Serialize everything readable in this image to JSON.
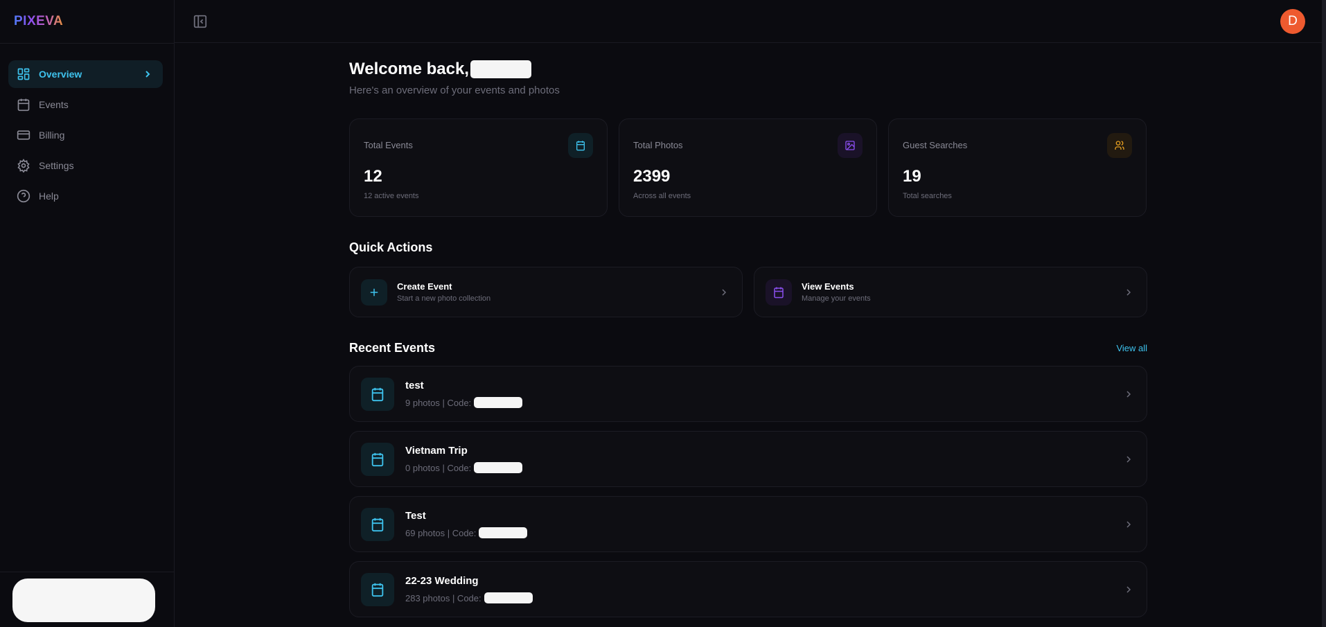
{
  "app": {
    "logo": "PIXEVA",
    "avatar_initial": "D",
    "accent": "#3ec3ee",
    "avatar_color": "#ee5a2f"
  },
  "sidebar": {
    "items": [
      {
        "label": "Overview",
        "icon": "grid-icon",
        "active": true
      },
      {
        "label": "Events",
        "icon": "calendar-icon"
      },
      {
        "label": "Billing",
        "icon": "credit-card-icon"
      },
      {
        "label": "Settings",
        "icon": "gear-icon"
      },
      {
        "label": "Help",
        "icon": "help-circle-icon"
      }
    ]
  },
  "main": {
    "title": "Welcome back,",
    "subtitle": "Here's an overview of your events and photos",
    "stats": [
      {
        "label": "Total Events",
        "value": "12",
        "sub": "12 active events",
        "icon": "calendar-icon",
        "color": "#3ec3ee"
      },
      {
        "label": "Total Photos",
        "value": "2399",
        "sub": "Across all events",
        "icon": "image-icon",
        "color": "#8b4ff0"
      },
      {
        "label": "Guest Searches",
        "value": "19",
        "sub": "Total searches",
        "icon": "users-icon",
        "color": "#e8a020"
      }
    ],
    "quick_actions_title": "Quick Actions",
    "quick_actions": [
      {
        "title": "Create Event",
        "sub": "Start a new photo collection",
        "icon": "plus-icon"
      },
      {
        "title": "View Events",
        "sub": "Manage your events",
        "icon": "calendar-icon"
      }
    ],
    "recent_title": "Recent Events",
    "view_all": "View all",
    "events": [
      {
        "name": "test",
        "meta": "9 photos | Code:"
      },
      {
        "name": "Vietnam Trip",
        "meta": "0 photos | Code:"
      },
      {
        "name": "Test",
        "meta": "69 photos | Code:"
      },
      {
        "name": "22-23 Wedding",
        "meta": "283 photos | Code:"
      }
    ]
  }
}
